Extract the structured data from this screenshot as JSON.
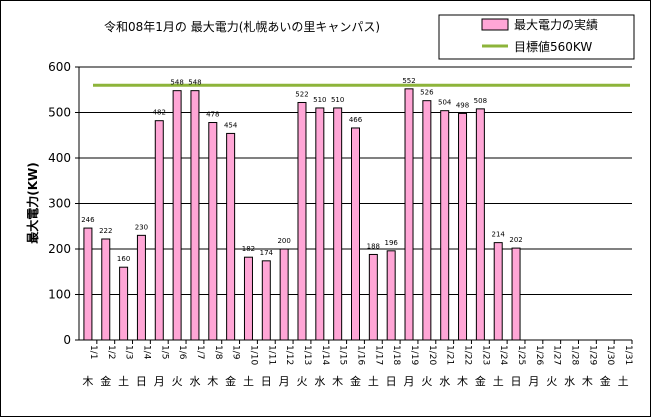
{
  "chart_data": {
    "type": "bar",
    "title": "令和08年1月の 最大電力(札幌あいの里キャンパス)",
    "ylabel": "最大電力(KW)",
    "xlabel": "",
    "ylim": [
      0,
      600
    ],
    "yticks": [
      0,
      100,
      200,
      300,
      400,
      500,
      600
    ],
    "grid": true,
    "legend_position": "top-right",
    "categories": [
      "1/1",
      "1/2",
      "1/3",
      "1/4",
      "1/5",
      "1/6",
      "1/7",
      "1/8",
      "1/9",
      "1/10",
      "1/11",
      "1/12",
      "1/13",
      "1/14",
      "1/15",
      "1/16",
      "1/17",
      "1/18",
      "1/19",
      "1/20",
      "1/21",
      "1/22",
      "1/23",
      "1/24",
      "1/25",
      "1/26",
      "1/27",
      "1/28",
      "1/29",
      "1/30",
      "1/31"
    ],
    "weekdays": [
      "木",
      "金",
      "土",
      "日",
      "月",
      "火",
      "水",
      "木",
      "金",
      "土",
      "日",
      "月",
      "火",
      "水",
      "木",
      "金",
      "土",
      "日",
      "月",
      "火",
      "水",
      "木",
      "金",
      "土",
      "日",
      "月",
      "火",
      "水",
      "木",
      "金",
      "土"
    ],
    "series": [
      {
        "name": "最大電力の実績",
        "type": "bar",
        "color": "#ffa6d6",
        "values": [
          246,
          222,
          160,
          230,
          482,
          548,
          548,
          478,
          454,
          182,
          174,
          200,
          522,
          510,
          510,
          466,
          188,
          196,
          552,
          526,
          504,
          498,
          508,
          214,
          202,
          null,
          null,
          null,
          null,
          null,
          null
        ],
        "labels": [
          "246",
          "222",
          "160",
          "230",
          "482",
          "548",
          "548",
          "478",
          "454",
          "182",
          "174",
          "200",
          "522",
          "510",
          "510",
          "466",
          "188",
          "196",
          "552",
          "526",
          "504",
          "498",
          "508",
          "214",
          "202",
          "",
          "",
          "",
          "",
          "",
          ""
        ]
      },
      {
        "name": "目標値560KW",
        "type": "line",
        "color": "#8db43a",
        "value": 560
      }
    ]
  }
}
